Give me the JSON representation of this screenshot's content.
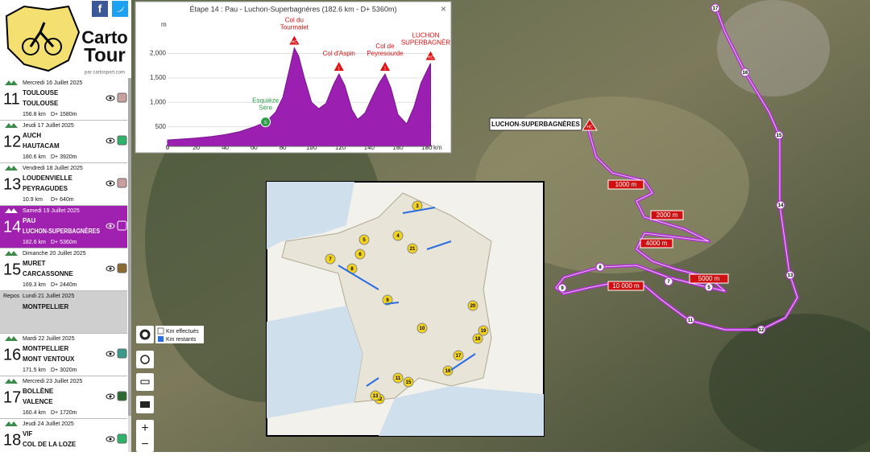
{
  "logo": {
    "name1": "Carto",
    "name2": "Tour",
    "credit": "par cartosport.com"
  },
  "stages": [
    {
      "date": "Mercredi 16 Juillet 2025",
      "number": "11",
      "start": "TOULOUSE",
      "finish": "TOULOUSE",
      "distance": "156.8 km",
      "climb": "D+ 1580m",
      "color": "#c9a0a0"
    },
    {
      "date": "Jeudi 17 Juillet 2025",
      "number": "12",
      "start": "AUCH",
      "finish": "HAUTACAM",
      "distance": "180.6 km",
      "climb": "D+ 3920m",
      "color": "#2bb36a"
    },
    {
      "date": "Vendredi 18 Juillet 2025",
      "number": "13",
      "start": "LOUDENVIELLE",
      "finish": "PEYRAGUDES",
      "distance": "10.9 km",
      "climb": "D+ 640m",
      "color": "#c9a0a0"
    },
    {
      "date": "Samedi 19 Juillet 2025",
      "number": "14",
      "start": "PAU",
      "finish": "LUCHON-SUPERBAGNÈRES",
      "distance": "182.6 km",
      "climb": "D+ 5360m",
      "color": "#a020b0",
      "selected": true
    },
    {
      "date": "Dimanche 20 Juillet 2025",
      "number": "15",
      "start": "MURET",
      "finish": "CARCASSONNE",
      "distance": "169.3 km",
      "climb": "D+ 2440m",
      "color": "#8b6a30"
    },
    {
      "date": "Lundi 21 Juillet 2025",
      "number": "Repos",
      "start": "MONTPELLIER",
      "rest": true
    },
    {
      "date": "Mardi 22 Juillet 2025",
      "number": "16",
      "start": "MONTPELLIER",
      "finish": "MONT VENTOUX",
      "distance": "171.5 km",
      "climb": "D+ 3020m",
      "color": "#3a9a8a"
    },
    {
      "date": "Mercredi 23 Juillet 2025",
      "number": "17",
      "start": "BOLLÈNE",
      "finish": "VALENCE",
      "distance": "160.4 km",
      "climb": "D+ 1720m",
      "color": "#2a6a30"
    },
    {
      "date": "Jeudi 24 Juillet 2025",
      "number": "18",
      "start": "VIF",
      "finish": "COL DE LA LOZE",
      "distance": "",
      "climb": "",
      "color": "#2bb36a"
    }
  ],
  "profile": {
    "title": "Étape 14 : Pau - Luchon-Superbagnères (182.6 km - D+ 5360m)",
    "y_unit": "m",
    "x_unit": "km",
    "x": [
      0,
      10,
      20,
      30,
      40,
      50,
      60,
      65,
      70,
      75,
      80,
      84,
      88,
      91,
      95,
      100,
      105,
      110,
      115,
      119,
      123,
      128,
      132,
      137,
      142,
      147,
      151,
      155,
      160,
      166,
      171,
      176,
      182.6
    ],
    "y": [
      230,
      250,
      270,
      300,
      340,
      400,
      500,
      560,
      650,
      800,
      1100,
      1600,
      2115,
      1950,
      1500,
      1000,
      870,
      980,
      1350,
      1580,
      1350,
      850,
      650,
      780,
      1100,
      1400,
      1580,
      1300,
      750,
      560,
      900,
      1400,
      1800
    ],
    "ylim": [
      100,
      2600
    ],
    "xlim": [
      0,
      184
    ],
    "yticks": [
      500,
      {
        "value": 1000,
        "label": "1,000"
      },
      {
        "value": 1500,
        "label": "1,500"
      },
      {
        "value": 2000,
        "label": "2,000"
      }
    ],
    "xticks": [
      0,
      20,
      40,
      60,
      80,
      100,
      120,
      140,
      160,
      180
    ],
    "climbs": [
      {
        "name": "Esquièze Sère",
        "km": 68,
        "marker": "S",
        "color": "#2e9e4a"
      },
      {
        "name": "Col du Tourmalet",
        "km": 88,
        "marker": "HC",
        "color": "#e01010"
      },
      {
        "name": "Col d'Aspin",
        "km": 119,
        "marker": "1",
        "color": "#e01010"
      },
      {
        "name": "Col de Peyresourde",
        "km": 151,
        "marker": "1",
        "color": "#e01010"
      },
      {
        "name": "LUCHON SUPERBAGNÈR",
        "km": 182.6,
        "marker": "HC",
        "color": "#e01010"
      }
    ]
  },
  "map": {
    "finish_label": "LUCHON-SUPERBAGNÈRES",
    "finish_marker": "HC",
    "distance_flags": [
      "1000 m",
      "2000 m",
      "4000 m",
      "5000 m",
      "10 000 m"
    ],
    "km_markers": [
      "17",
      "16",
      "15",
      "14",
      "13",
      "12",
      "11",
      "9",
      "8",
      "7",
      "5"
    ],
    "legend": [
      "Km effectués",
      "Km restants"
    ],
    "inset_stages": [
      "3",
      "4",
      "5",
      "6",
      "7",
      "8",
      "9",
      "10",
      "11",
      "12",
      "13",
      "15",
      "16",
      "17",
      "18",
      "19",
      "20",
      "21"
    ]
  }
}
